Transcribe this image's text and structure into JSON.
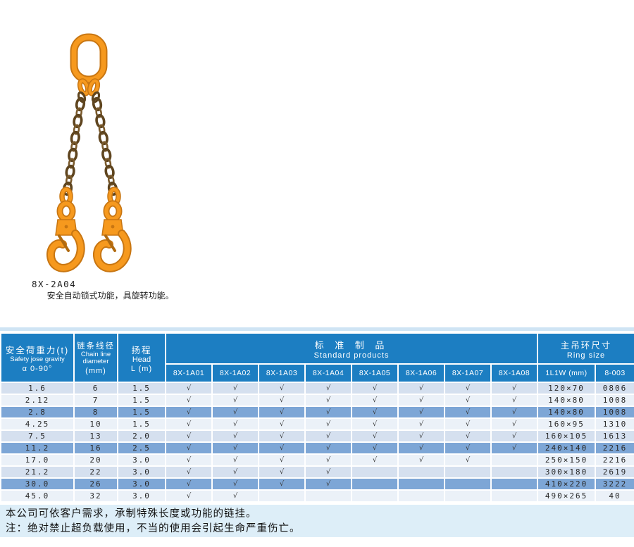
{
  "colors": {
    "header_blue": "#1c7ec2",
    "row_light": "#d5e0ef",
    "row_lighter": "#ebf1f8",
    "row_dark": "#7da6d6",
    "notes_bg": "#ddeef8",
    "strip": "#cfe4f4",
    "accent_orange": "#f6991e",
    "orange_dark": "#c87612",
    "chain_bronze": "#5f451f",
    "text_dark": "#222222"
  },
  "product": {
    "code": "8X-2A04",
    "description": "安全自动锁式功能，具旋转功能。"
  },
  "table": {
    "check_glyph": "√",
    "headers": {
      "load": {
        "zh": "安全荷重力(t)",
        "en": "Safety jose gravity",
        "sub": "α 0-90°"
      },
      "chain": {
        "zh": "链条线径",
        "en1": "Chain line",
        "en2": "diameter",
        "unit": "(mm)"
      },
      "head": {
        "zh": "扬程",
        "en": "Head",
        "unit": "L (m)"
      },
      "standard": {
        "zh": "标 准 制 品",
        "en": "Standard products"
      },
      "ring": {
        "zh": "主吊环尺寸",
        "en": "Ring size"
      },
      "model_cols": [
        "8X-1A01",
        "8X-1A02",
        "8X-1A03",
        "8X-1A04",
        "8X-1A05",
        "8X-1A06",
        "8X-1A07",
        "8X-1A08"
      ],
      "ring_cols": [
        "1L1W (mm)",
        "8-003"
      ]
    },
    "rows": [
      {
        "load": "1.6",
        "dia": "6",
        "len": "1.5",
        "checks": [
          1,
          1,
          1,
          1,
          1,
          1,
          1,
          1
        ],
        "ring": "120×70",
        "code": "0806",
        "shade": "light"
      },
      {
        "load": "2.12",
        "dia": "7",
        "len": "1.5",
        "checks": [
          1,
          1,
          1,
          1,
          1,
          1,
          1,
          1
        ],
        "ring": "140×80",
        "code": "1008",
        "shade": "lighter"
      },
      {
        "load": "2.8",
        "dia": "8",
        "len": "1.5",
        "checks": [
          1,
          1,
          1,
          1,
          1,
          1,
          1,
          1
        ],
        "ring": "140×80",
        "code": "1008",
        "shade": "dark"
      },
      {
        "load": "4.25",
        "dia": "10",
        "len": "1.5",
        "checks": [
          1,
          1,
          1,
          1,
          1,
          1,
          1,
          1
        ],
        "ring": "160×95",
        "code": "1310",
        "shade": "lighter"
      },
      {
        "load": "7.5",
        "dia": "13",
        "len": "2.0",
        "checks": [
          1,
          1,
          1,
          1,
          1,
          1,
          1,
          1
        ],
        "ring": "160×105",
        "code": "1613",
        "shade": "light"
      },
      {
        "load": "11.2",
        "dia": "16",
        "len": "2.5",
        "checks": [
          1,
          1,
          1,
          1,
          1,
          1,
          1,
          1
        ],
        "ring": "240×140",
        "code": "2216",
        "shade": "dark"
      },
      {
        "load": "17.0",
        "dia": "20",
        "len": "3.0",
        "checks": [
          1,
          1,
          1,
          1,
          1,
          1,
          1,
          0
        ],
        "ring": "250×150",
        "code": "2216",
        "shade": "lighter"
      },
      {
        "load": "21.2",
        "dia": "22",
        "len": "3.0",
        "checks": [
          1,
          1,
          1,
          1,
          0,
          0,
          0,
          0
        ],
        "ring": "300×180",
        "code": "2619",
        "shade": "light"
      },
      {
        "load": "30.0",
        "dia": "26",
        "len": "3.0",
        "checks": [
          1,
          1,
          1,
          1,
          0,
          0,
          0,
          0
        ],
        "ring": "410×220",
        "code": "3222",
        "shade": "dark"
      },
      {
        "load": "45.0",
        "dia": "32",
        "len": "3.0",
        "checks": [
          1,
          1,
          0,
          0,
          0,
          0,
          0,
          0
        ],
        "ring": "490×265",
        "code": "40",
        "shade": "lighter"
      }
    ]
  },
  "notes": {
    "line1": "本公司可依客户需求，承制特殊长度或功能的链挂。",
    "line2": "注：绝对禁止超负载使用，不当的使用会引起生命严重伤亡。"
  }
}
